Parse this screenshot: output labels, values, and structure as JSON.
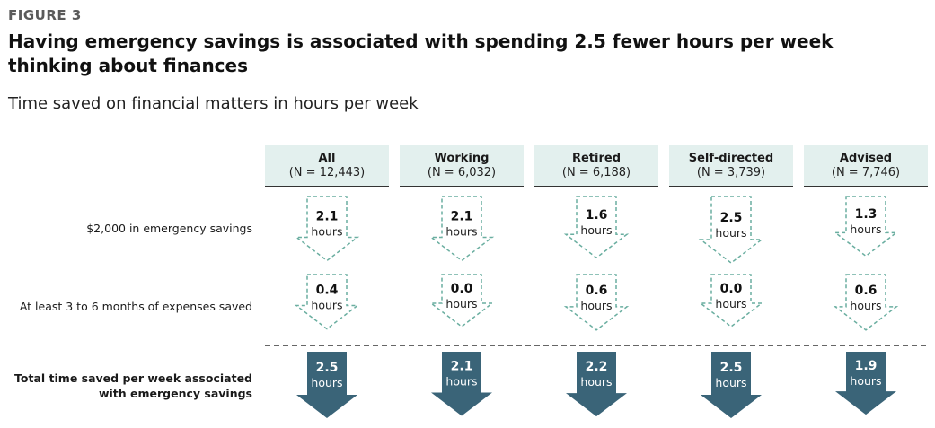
{
  "figure_label": "FIGURE 3",
  "title": "Having emergency savings is associated with spending 2.5 fewer hours per week thinking about finances",
  "subtitle": "Time saved on financial matters in hours per week",
  "colors": {
    "header_bg": "#e3f0ee",
    "dashed_arrow": "#6aaea0",
    "solid_arrow": "#3a6478"
  },
  "chart_data": {
    "type": "table",
    "unit": "hours",
    "columns": [
      {
        "name": "All",
        "n": "(N = 12,443)"
      },
      {
        "name": "Working",
        "n": "(N = 6,032)"
      },
      {
        "name": "Retired",
        "n": "(N = 6,188)"
      },
      {
        "name": "Self-directed",
        "n": "(N = 3,739)"
      },
      {
        "name": "Advised",
        "n": "(N = 7,746)"
      }
    ],
    "rows": [
      {
        "label": "$2,000 in emergency savings",
        "style": "dashed",
        "values": [
          "2.1",
          "2.1",
          "1.6",
          "2.5",
          "1.3"
        ]
      },
      {
        "label": "At least 3 to 6 months of expenses saved",
        "style": "dashed",
        "values": [
          "0.4",
          "0.0",
          "0.6",
          "0.0",
          "0.6"
        ]
      },
      {
        "label_lines": [
          "Total time saved per week associated",
          "with emergency savings"
        ],
        "style": "solid",
        "values": [
          "2.5",
          "2.1",
          "2.2",
          "2.5",
          "1.9"
        ]
      }
    ]
  }
}
